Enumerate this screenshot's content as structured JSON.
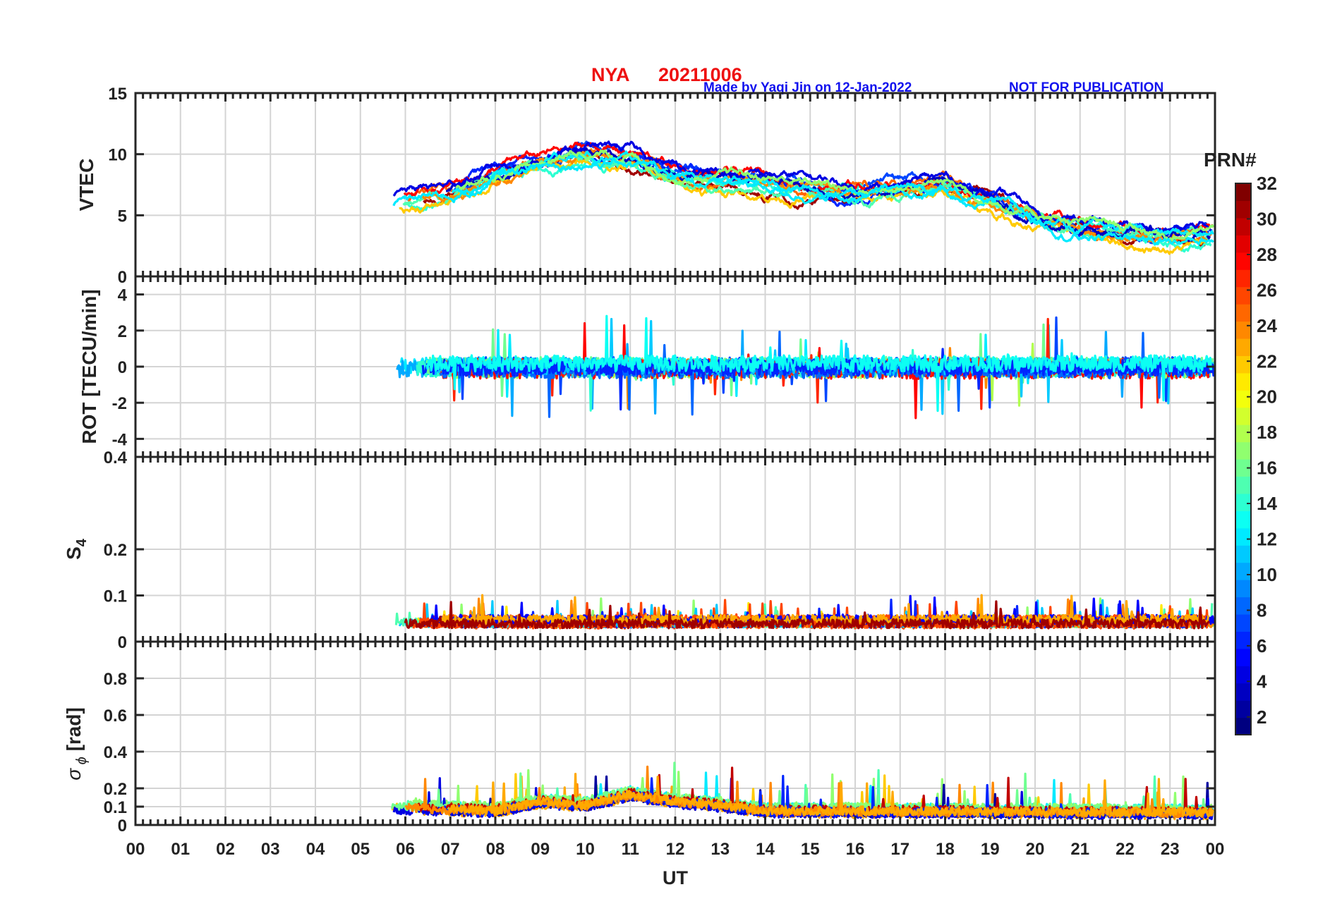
{
  "title": {
    "station": "NYA",
    "date": "20211006",
    "credit": "Made by Yaqi Jin on 12-Jan-2022",
    "notice": "NOT FOR PUBLICATION"
  },
  "chart_data": [
    {
      "type": "line",
      "panel": "VTEC",
      "ylabel": "VTEC",
      "ylim": [
        0,
        15
      ],
      "yticks": [
        0,
        5,
        10,
        15
      ],
      "ytick_labels": [
        "0",
        "5",
        "10",
        "15"
      ],
      "grid": true,
      "x_start": 5.65,
      "x_end": 24,
      "trend": {
        "x": [
          5.65,
          7,
          8,
          9,
          10,
          11,
          12,
          13,
          14,
          15,
          16,
          17,
          18,
          19,
          20,
          21,
          22,
          23,
          24
        ],
        "y": [
          5.8,
          6.6,
          8.2,
          9.0,
          9.8,
          9.5,
          8.2,
          7.6,
          7.4,
          7.1,
          6.6,
          7.0,
          7.2,
          6.0,
          4.6,
          3.8,
          3.3,
          3.1,
          3.2
        ]
      },
      "spread": 1.6
    },
    {
      "type": "line",
      "panel": "ROT",
      "ylabel": "ROT [TECU/min]",
      "ylim": [
        -5,
        5
      ],
      "yticks": [
        -4,
        -2,
        0,
        2,
        4
      ],
      "ytick_labels": [
        "-4",
        "-2",
        "0",
        "2",
        "4"
      ],
      "grid": true,
      "x_start": 5.65,
      "x_end": 24,
      "trend": {
        "x": [
          5.65,
          24
        ],
        "y": [
          0,
          0
        ]
      },
      "spread": 0.45
    },
    {
      "type": "line",
      "panel": "S4",
      "ylabel": "S4",
      "ylim": [
        0,
        0.4
      ],
      "yticks": [
        0,
        0.1,
        0.2,
        0.4
      ],
      "ytick_labels": [
        "0",
        "0.1",
        "0.2",
        "0.4"
      ],
      "grid": true,
      "x_start": 5.65,
      "x_end": 24,
      "trend": {
        "x": [
          5.65,
          24
        ],
        "y": [
          0.04,
          0.04
        ]
      },
      "spread": 0.012
    },
    {
      "type": "line",
      "panel": "SigmaPhi",
      "ylabel": "σ ϕ [rad]",
      "ylim": [
        0,
        1
      ],
      "yticks": [
        0,
        0.1,
        0.2,
        0.4,
        0.6,
        0.8
      ],
      "ytick_labels": [
        "0",
        "0.1",
        "0.2",
        "0.4",
        "0.6",
        "0.8"
      ],
      "grid": true,
      "x_start": 5.65,
      "x_end": 24,
      "trend": {
        "x": [
          5.65,
          8,
          9,
          10,
          11,
          12,
          13,
          14,
          24
        ],
        "y": [
          0.09,
          0.07,
          0.12,
          0.1,
          0.16,
          0.12,
          0.1,
          0.07,
          0.06
        ]
      },
      "spread": 0.04
    }
  ],
  "x_axis": {
    "label": "UT",
    "xlim": [
      0,
      24
    ],
    "ticks": [
      "00",
      "01",
      "02",
      "03",
      "04",
      "05",
      "06",
      "07",
      "08",
      "09",
      "10",
      "11",
      "12",
      "13",
      "14",
      "15",
      "16",
      "17",
      "18",
      "19",
      "20",
      "21",
      "22",
      "23",
      "00"
    ]
  },
  "colorbar": {
    "title": "PRN#",
    "range": [
      1,
      32
    ],
    "ticks": [
      "2",
      "4",
      "6",
      "8",
      "10",
      "12",
      "14",
      "16",
      "18",
      "20",
      "22",
      "24",
      "26",
      "28",
      "30",
      "32"
    ],
    "colormap": "jet"
  }
}
